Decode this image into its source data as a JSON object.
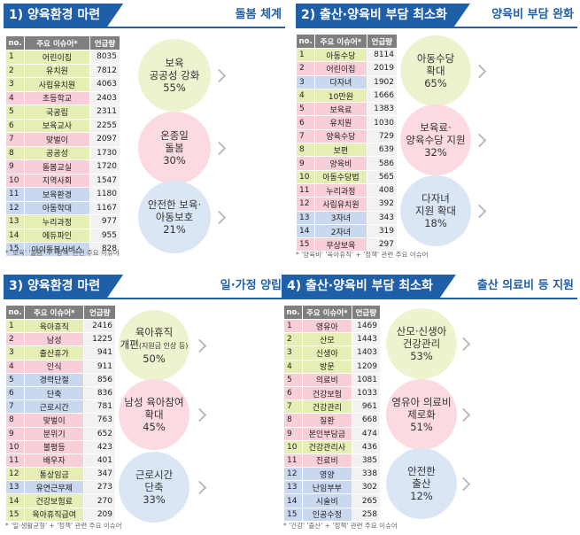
{
  "chart_data": [
    {
      "type": "table",
      "banner_title": "1) 양육환경 마련",
      "banner_subtitle": "돌봄 체계",
      "headers": [
        "no.",
        "주요 이슈어*",
        "언급량"
      ],
      "rows": [
        {
          "no": "1",
          "kw": "어린이집",
          "count": "8035",
          "group": "y"
        },
        {
          "no": "2",
          "kw": "유치원",
          "count": "7812",
          "group": "y"
        },
        {
          "no": "3",
          "kw": "사립유치원",
          "count": "4063",
          "group": "y"
        },
        {
          "no": "4",
          "kw": "초등학교",
          "count": "2403",
          "group": "p"
        },
        {
          "no": "5",
          "kw": "국공립",
          "count": "2311",
          "group": "y"
        },
        {
          "no": "6",
          "kw": "보육교사",
          "count": "2255",
          "group": "y"
        },
        {
          "no": "7",
          "kw": "맞벌이",
          "count": "2097",
          "group": "p"
        },
        {
          "no": "8",
          "kw": "공공성",
          "count": "1730",
          "group": "y"
        },
        {
          "no": "9",
          "kw": "돌봄교실",
          "count": "1720",
          "group": "p"
        },
        {
          "no": "10",
          "kw": "지역사회",
          "count": "1547",
          "group": "p"
        },
        {
          "no": "11",
          "kw": "보육환경",
          "count": "1180",
          "group": "b"
        },
        {
          "no": "12",
          "kw": "아동학대",
          "count": "1167",
          "group": "b"
        },
        {
          "no": "13",
          "kw": "누리과정",
          "count": "977",
          "group": "y"
        },
        {
          "no": "14",
          "kw": "에듀파인",
          "count": "955",
          "group": "y"
        },
        {
          "no": "15",
          "kw": "아이돌봄서비스",
          "count": "828",
          "group": "b"
        }
      ],
      "circles": [
        {
          "line1": "보육",
          "line2": "공공성 강화",
          "pct": "55%"
        },
        {
          "line1": "온종일",
          "line2": "돌봄",
          "pct": "30%"
        },
        {
          "line1": "안전한 보육·",
          "line2": "아동보호",
          "pct": "21%"
        }
      ],
      "note": "* '보육' '돌봄' + '정책' 관련 주요 이슈어"
    },
    {
      "type": "table",
      "banner_title": "2) 출산·양육비 부담 최소화",
      "banner_subtitle": "양육비 부담 완화",
      "headers": [
        "no.",
        "주요 이슈어*",
        "언급량"
      ],
      "rows": [
        {
          "no": "1",
          "kw": "아동수당",
          "count": "8114",
          "group": "y"
        },
        {
          "no": "2",
          "kw": "어린이집",
          "count": "2019",
          "group": "p"
        },
        {
          "no": "3",
          "kw": "다자녀",
          "count": "1902",
          "group": "b"
        },
        {
          "no": "4",
          "kw": "10만원",
          "count": "1666",
          "group": "y"
        },
        {
          "no": "5",
          "kw": "보육료",
          "count": "1383",
          "group": "p"
        },
        {
          "no": "6",
          "kw": "유치원",
          "count": "1030",
          "group": "p"
        },
        {
          "no": "7",
          "kw": "양육수당",
          "count": "729",
          "group": "p"
        },
        {
          "no": "8",
          "kw": "보편",
          "count": "639",
          "group": "y"
        },
        {
          "no": "9",
          "kw": "양육비",
          "count": "586",
          "group": "p"
        },
        {
          "no": "10",
          "kw": "아동수당법",
          "count": "565",
          "group": "y"
        },
        {
          "no": "11",
          "kw": "누리과정",
          "count": "408",
          "group": "p"
        },
        {
          "no": "12",
          "kw": "사립유치원",
          "count": "392",
          "group": "p"
        },
        {
          "no": "13",
          "kw": "3자녀",
          "count": "343",
          "group": "b"
        },
        {
          "no": "14",
          "kw": "2자녀",
          "count": "319",
          "group": "b"
        },
        {
          "no": "15",
          "kw": "무상보육",
          "count": "297",
          "group": "p"
        }
      ],
      "circles": [
        {
          "line1": "아동수당",
          "line2": "확대",
          "pct": "65%"
        },
        {
          "line1": "보육료·",
          "line2": "양육수당 지원",
          "pct": "32%"
        },
        {
          "line1": "다자녀",
          "line2": "지원 확대",
          "pct": "18%"
        }
      ],
      "note": "* '양육비' '육아휴직' + '정책' 관련 주요 이슈어"
    },
    {
      "type": "table",
      "banner_title": "3) 양육환경 마련",
      "banner_subtitle": "일·가정 양립",
      "headers": [
        "no.",
        "주요 이슈어*",
        "언급량"
      ],
      "rows": [
        {
          "no": "1",
          "kw": "육아휴직",
          "count": "2416",
          "group": "y"
        },
        {
          "no": "2",
          "kw": "남성",
          "count": "1225",
          "group": "p"
        },
        {
          "no": "3",
          "kw": "출산휴가",
          "count": "941",
          "group": "y"
        },
        {
          "no": "4",
          "kw": "인식",
          "count": "911",
          "group": "p"
        },
        {
          "no": "5",
          "kw": "경력단절",
          "count": "856",
          "group": "b"
        },
        {
          "no": "6",
          "kw": "단축",
          "count": "836",
          "group": "b"
        },
        {
          "no": "7",
          "kw": "근로시간",
          "count": "781",
          "group": "b"
        },
        {
          "no": "8",
          "kw": "맞벌이",
          "count": "763",
          "group": "p"
        },
        {
          "no": "9",
          "kw": "분위기",
          "count": "652",
          "group": "p"
        },
        {
          "no": "10",
          "kw": "불평등",
          "count": "423",
          "group": "p"
        },
        {
          "no": "11",
          "kw": "배우자",
          "count": "401",
          "group": "p"
        },
        {
          "no": "12",
          "kw": "통상임금",
          "count": "347",
          "group": "y"
        },
        {
          "no": "13",
          "kw": "유연근무제",
          "count": "273",
          "group": "b"
        },
        {
          "no": "14",
          "kw": "건강보험료",
          "count": "270",
          "group": "y"
        },
        {
          "no": "15",
          "kw": "육아휴직급여",
          "count": "209",
          "group": "y"
        }
      ],
      "circles": [
        {
          "line1": "육아휴직",
          "line2": "개편",
          "line2_small": "(지원금 인상 등)",
          "pct": "50%"
        },
        {
          "line1": "남성 육아참여",
          "line2": "확대",
          "pct": "45%"
        },
        {
          "line1": "근로시간",
          "line2": "단축",
          "pct": "33%"
        }
      ],
      "note": "* '일·생활균형' + '정책' 관련 주요 이슈어"
    },
    {
      "type": "table",
      "banner_title": "4) 출산·양육비 부담 최소화",
      "banner_subtitle": "출산 의료비 등 지원",
      "headers": [
        "no.",
        "주요 이슈어*",
        "언급량"
      ],
      "rows": [
        {
          "no": "1",
          "kw": "영유아",
          "count": "1469",
          "group": "p"
        },
        {
          "no": "2",
          "kw": "산모",
          "count": "1443",
          "group": "y"
        },
        {
          "no": "3",
          "kw": "신생아",
          "count": "1403",
          "group": "y"
        },
        {
          "no": "4",
          "kw": "방문",
          "count": "1209",
          "group": "y"
        },
        {
          "no": "5",
          "kw": "의료비",
          "count": "1081",
          "group": "p"
        },
        {
          "no": "6",
          "kw": "건강보험",
          "count": "1033",
          "group": "p"
        },
        {
          "no": "7",
          "kw": "건강관리",
          "count": "961",
          "group": "y"
        },
        {
          "no": "8",
          "kw": "질환",
          "count": "668",
          "group": "p"
        },
        {
          "no": "9",
          "kw": "본인부담금",
          "count": "474",
          "group": "p"
        },
        {
          "no": "10",
          "kw": "건강관리사",
          "count": "436",
          "group": "y"
        },
        {
          "no": "11",
          "kw": "진료비",
          "count": "385",
          "group": "p"
        },
        {
          "no": "12",
          "kw": "영양",
          "count": "338",
          "group": "b"
        },
        {
          "no": "13",
          "kw": "난임부부",
          "count": "302",
          "group": "b"
        },
        {
          "no": "14",
          "kw": "시술비",
          "count": "265",
          "group": "b"
        },
        {
          "no": "15",
          "kw": "인공수정",
          "count": "258",
          "group": "b"
        }
      ],
      "circles": [
        {
          "line1": "산모·신생아",
          "line2": "건강관리",
          "pct": "53%"
        },
        {
          "line1": "영유아 의료비",
          "line2": "제로화",
          "pct": "51%"
        },
        {
          "line1": "안전한",
          "line2": "출산",
          "pct": "12%"
        }
      ],
      "note": "* '건강' '출산' + '정책' 관련 주요 이슈어"
    }
  ]
}
